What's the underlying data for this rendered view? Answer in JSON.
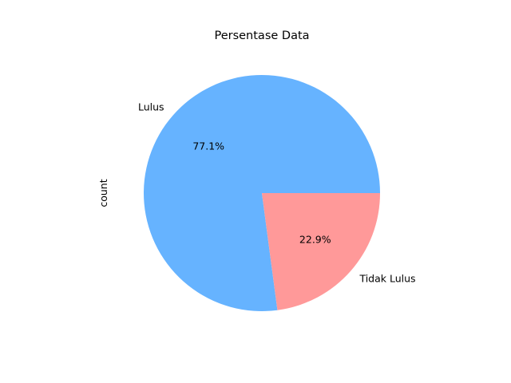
{
  "chart_data": {
    "type": "pie",
    "title": "Persentase Data",
    "ylabel": "count",
    "start_angle_deg": 0,
    "direction": "counterclockwise",
    "slices": [
      {
        "label": "Lulus",
        "value": 77.1,
        "pct_label": "77.1%",
        "color": "#66b3ff"
      },
      {
        "label": "Tidak Lulus",
        "value": 22.9,
        "pct_label": "22.9%",
        "color": "#ff9999"
      }
    ]
  }
}
